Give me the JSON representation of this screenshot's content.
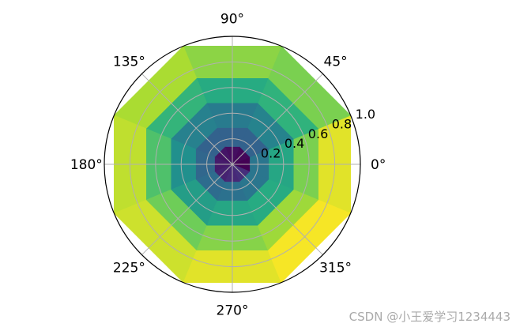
{
  "chart_data": {
    "type": "polar-heatmap",
    "theta_ticks": [
      "0°",
      "45°",
      "90°",
      "135°",
      "180°",
      "225°",
      "270°",
      "315°"
    ],
    "theta_tick_angles_deg": [
      0,
      45,
      90,
      135,
      180,
      225,
      270,
      315
    ],
    "r_ticks": [
      "0.2",
      "0.4",
      "0.6",
      "0.8",
      "1.0"
    ],
    "r_tick_values": [
      0.2,
      0.4,
      0.6,
      0.8,
      1.0
    ],
    "rlim": [
      0,
      1.0
    ],
    "grid": true,
    "colormap": "viridis",
    "theta_edges_deg": [
      -22.5,
      22.5,
      67.5,
      112.5,
      157.5,
      202.5,
      247.5,
      292.5,
      337.5
    ],
    "r_edges": [
      0,
      0.15,
      0.31,
      0.52,
      0.73,
      1.0
    ],
    "cells": [
      [
        0.0,
        0.4,
        0.6,
        0.8,
        0.96
      ],
      [
        0.02,
        0.32,
        0.45,
        0.65,
        0.8
      ],
      [
        0.04,
        0.32,
        0.42,
        0.62,
        0.83
      ],
      [
        0.06,
        0.32,
        0.44,
        0.66,
        0.88
      ],
      [
        0.08,
        0.34,
        0.5,
        0.72,
        0.91
      ],
      [
        0.1,
        0.36,
        0.56,
        0.78,
        0.93
      ],
      [
        0.12,
        0.38,
        0.6,
        0.82,
        0.96
      ],
      [
        0.14,
        0.4,
        0.62,
        0.86,
        0.99
      ]
    ]
  },
  "watermark": "CSDN @小王爱学习1234443"
}
